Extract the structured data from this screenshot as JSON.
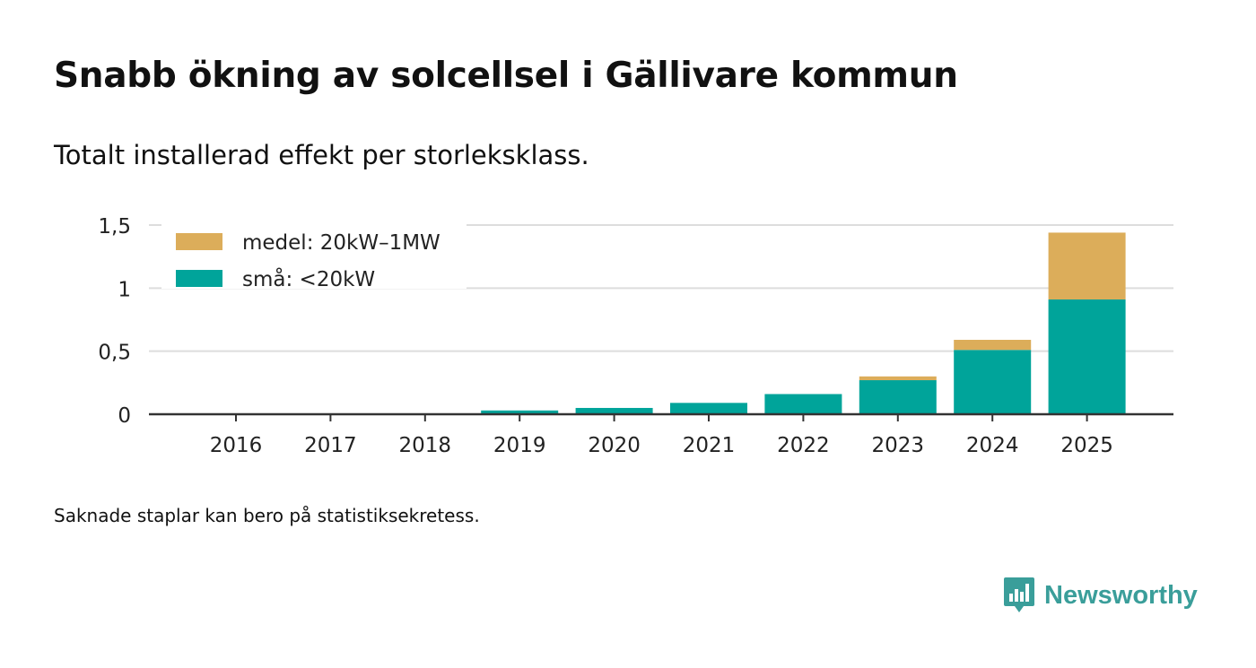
{
  "title": "Snabb ökning av solcellsel i Gällivare kommun",
  "subtitle": "Totalt installerad effekt per storleksklass.",
  "footnote": "Saknade staplar kan bero på statistiksekretess.",
  "brand": {
    "name": "Newsworthy",
    "icon": "newsworthy-logo-icon",
    "color": "#3a9e9a"
  },
  "colors": {
    "small": "#00a49a",
    "medium": "#dcad5a",
    "grid": "#dddddd",
    "axis": "#333333",
    "text": "#222222"
  },
  "chart_data": {
    "type": "bar",
    "stacked": true,
    "title": "Snabb ökning av solcellsel i Gällivare kommun",
    "subtitle": "Totalt installerad effekt per storleksklass.",
    "xlabel": "",
    "ylabel": "",
    "categories": [
      "2016",
      "2017",
      "2018",
      "2019",
      "2020",
      "2021",
      "2022",
      "2023",
      "2024",
      "2025"
    ],
    "series": [
      {
        "name": "små: <20kW",
        "color": "#00a49a",
        "values": [
          0,
          0,
          0,
          0.03,
          0.05,
          0.09,
          0.16,
          0.27,
          0.51,
          0.91
        ]
      },
      {
        "name": "medel: 20kW–1MW",
        "color": "#dcad5a",
        "values": [
          0,
          0,
          0,
          0,
          0,
          0,
          0,
          0.03,
          0.08,
          0.53
        ]
      }
    ],
    "ylim": [
      0,
      1.5
    ],
    "yticks": [
      0,
      0.5,
      1,
      1.5
    ],
    "ytick_labels": [
      "0",
      "0,5",
      "1",
      "1,5"
    ],
    "grid": true,
    "legend": {
      "position": "top-left",
      "entries": [
        "medel: 20kW–1MW",
        "små: <20kW"
      ]
    }
  }
}
